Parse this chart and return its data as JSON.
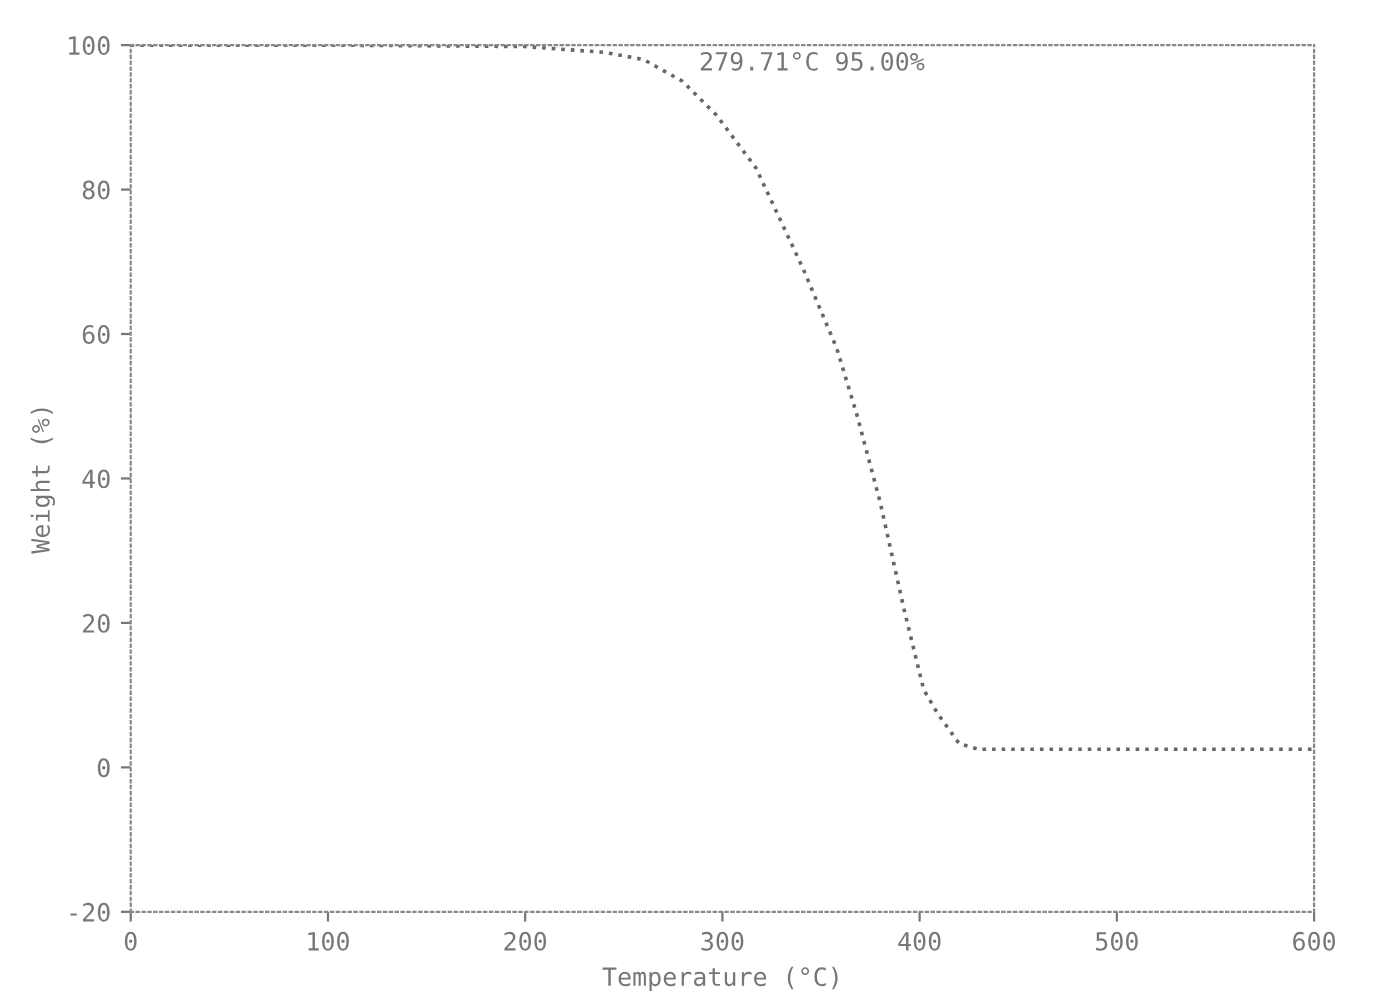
{
  "chart_data": {
    "type": "line",
    "xlabel": "Temperature (°C)",
    "ylabel": "Weight (%)",
    "x": [
      0,
      100,
      200,
      240,
      260,
      279.71,
      297,
      317,
      341,
      358,
      368,
      380,
      392,
      402,
      409,
      420,
      430,
      500,
      600
    ],
    "series": [
      {
        "color": "#666666",
        "values": [
          100,
          100,
          99.8,
          99,
          98,
          95,
          90.3,
          83,
          69,
          58,
          49,
          36.7,
          22,
          10.8,
          7.5,
          3.3,
          2.5,
          2.5,
          2.5
        ]
      }
    ],
    "xlim": [
      0,
      600
    ],
    "xticks": [
      0,
      100,
      200,
      300,
      400,
      500,
      600
    ],
    "ylim": [
      -20,
      100
    ],
    "yticks": [
      -20,
      0,
      20,
      40,
      60,
      80,
      100
    ],
    "annotations": [
      {
        "text": "279.71°C 95.00%",
        "x": 279.71,
        "y": 95
      }
    ],
    "grid": false,
    "marker": "none",
    "line_style": "dotted"
  }
}
